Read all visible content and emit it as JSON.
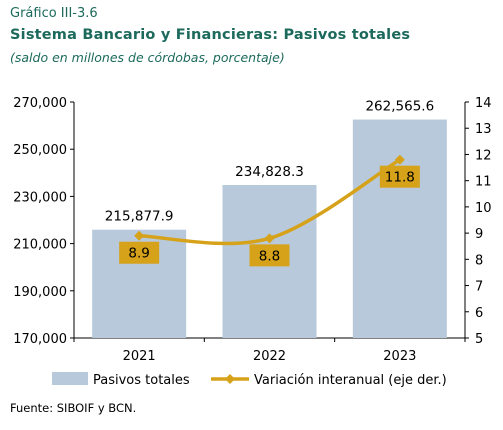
{
  "header": {
    "number": "Gráfico III-3.6",
    "title": "Sistema Bancario y Financieras: Pasivos totales",
    "subtitle": "(saldo en millones de córdobas, porcentaje)"
  },
  "source": "Fuente: SIBOIF y BCN.",
  "colors": {
    "bars": "#b7c9db",
    "line": "#d6a21a",
    "title": "#1c6a5c"
  },
  "chart_data": {
    "type": "bar",
    "categories": [
      "2021",
      "2022",
      "2023"
    ],
    "series": [
      {
        "name": "Pasivos totales",
        "type": "bar",
        "axis": "left",
        "values": [
          215877.9,
          234828.3,
          262565.6
        ],
        "labels": [
          "215,877.9",
          "234,828.3",
          "262,565.6"
        ]
      },
      {
        "name": "Variación interanual (eje der.)",
        "type": "line",
        "axis": "right",
        "values": [
          8.9,
          8.8,
          11.8
        ],
        "labels": [
          "8.9",
          "8.8",
          "11.8"
        ]
      }
    ],
    "y_left": {
      "min": 170000,
      "max": 270000,
      "ticks": [
        "170,000",
        "190,000",
        "210,000",
        "230,000",
        "250,000",
        "270,000"
      ],
      "tick_values": [
        170000,
        190000,
        210000,
        230000,
        250000,
        270000
      ]
    },
    "y_right": {
      "min": 5,
      "max": 14,
      "ticks": [
        "5",
        "6",
        "7",
        "8",
        "9",
        "10",
        "11",
        "12",
        "13",
        "14"
      ],
      "tick_values": [
        5,
        6,
        7,
        8,
        9,
        10,
        11,
        12,
        13,
        14
      ]
    },
    "grid": false,
    "legend_position": "bottom"
  }
}
